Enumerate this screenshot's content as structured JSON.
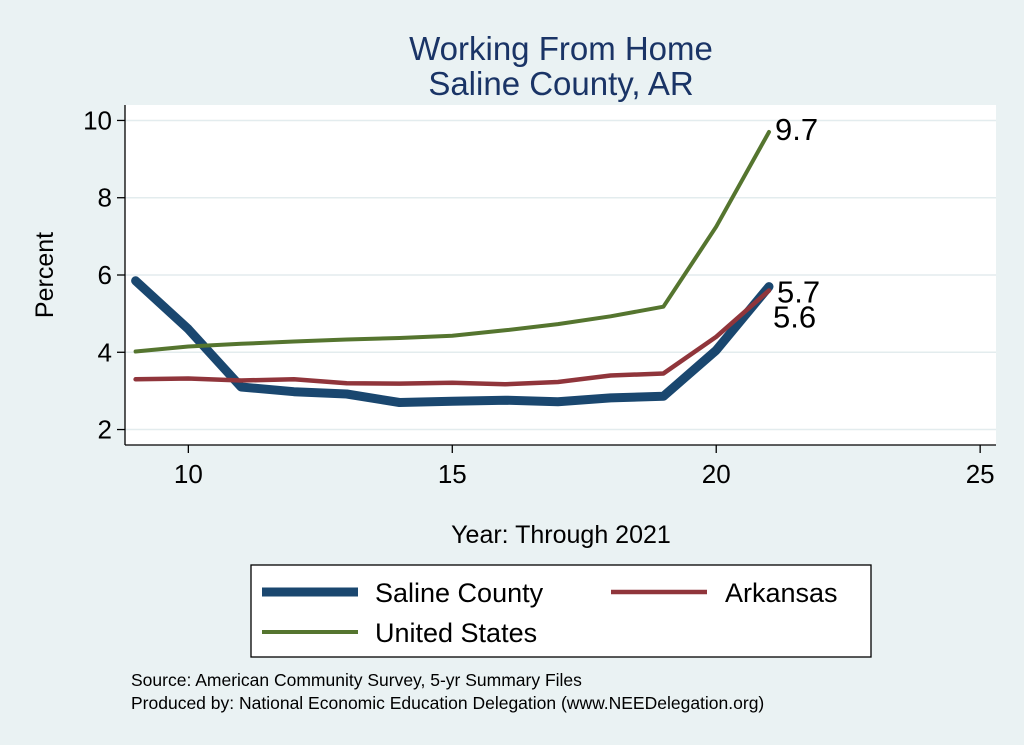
{
  "chart_data": {
    "type": "line",
    "title": "Working From Home",
    "subtitle": "Saline County, AR",
    "xlabel": "Year: Through 2021",
    "ylabel": "Percent",
    "xlim": [
      8.8,
      25.3
    ],
    "ylim": [
      1.6,
      10.4
    ],
    "xticks": [
      10,
      15,
      20,
      25
    ],
    "yticks": [
      2,
      4,
      6,
      8,
      10
    ],
    "grid": true,
    "x": [
      9,
      10,
      11,
      12,
      13,
      14,
      15,
      16,
      17,
      18,
      19,
      20,
      21
    ],
    "series": [
      {
        "name": "Saline County",
        "color": "#1a476f",
        "values": [
          5.85,
          4.6,
          3.1,
          2.98,
          2.92,
          2.7,
          2.73,
          2.76,
          2.72,
          2.82,
          2.86,
          4.05,
          5.7
        ],
        "end_label": "5.7"
      },
      {
        "name": "Arkansas",
        "color": "#90353b",
        "values": [
          3.3,
          3.32,
          3.27,
          3.3,
          3.2,
          3.19,
          3.21,
          3.17,
          3.23,
          3.4,
          3.45,
          4.4,
          5.6
        ],
        "end_label": "5.6"
      },
      {
        "name": "United States",
        "color": "#55752f",
        "values": [
          4.02,
          4.15,
          4.22,
          4.28,
          4.33,
          4.37,
          4.43,
          4.57,
          4.73,
          4.93,
          5.18,
          7.25,
          9.7
        ],
        "end_label": "9.7"
      }
    ],
    "legend_position": "bottom"
  },
  "footer": {
    "source": "Source: American Community Survey, 5-yr Summary Files",
    "produced_by": "Produced by: National Economic Education Delegation (www.NEEDelegation.org)"
  }
}
